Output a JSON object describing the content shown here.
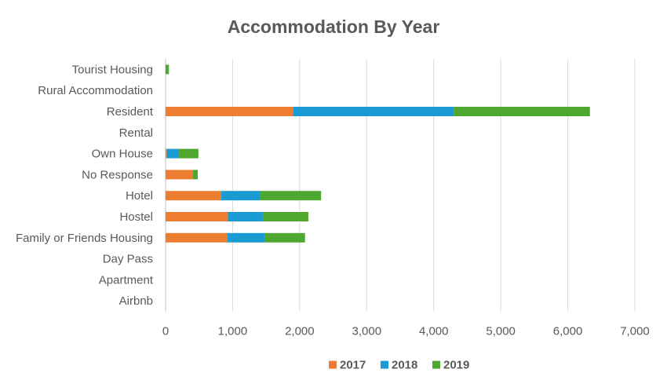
{
  "chart_data": {
    "type": "bar",
    "orientation": "horizontal",
    "stacked": true,
    "title": "Accommodation By Year",
    "categories": [
      "Airbnb",
      "Apartment",
      "Day Pass",
      "Family or Friends Housing",
      "Hostel",
      "Hotel",
      "No Response",
      "Own House",
      "Rental",
      "Resident",
      "Rural Accommodation",
      "Tourist Housing"
    ],
    "series": [
      {
        "name": "2017",
        "color": "#ED7D31",
        "values": [
          0,
          0,
          0,
          920,
          930,
          830,
          410,
          20,
          0,
          1900,
          0,
          0
        ]
      },
      {
        "name": "2018",
        "color": "#1B9BD3",
        "values": [
          0,
          0,
          0,
          560,
          520,
          580,
          0,
          180,
          0,
          2400,
          0,
          0
        ]
      },
      {
        "name": "2019",
        "color": "#4EA72E",
        "values": [
          0,
          0,
          0,
          600,
          680,
          910,
          70,
          290,
          0,
          2030,
          0,
          50
        ]
      }
    ],
    "xlim": [
      0,
      7000
    ],
    "x_ticks": [
      "0",
      "1,000",
      "2,000",
      "3,000",
      "4,000",
      "5,000",
      "6,000",
      "7,000"
    ],
    "grid": true,
    "legend_position": "bottom"
  }
}
